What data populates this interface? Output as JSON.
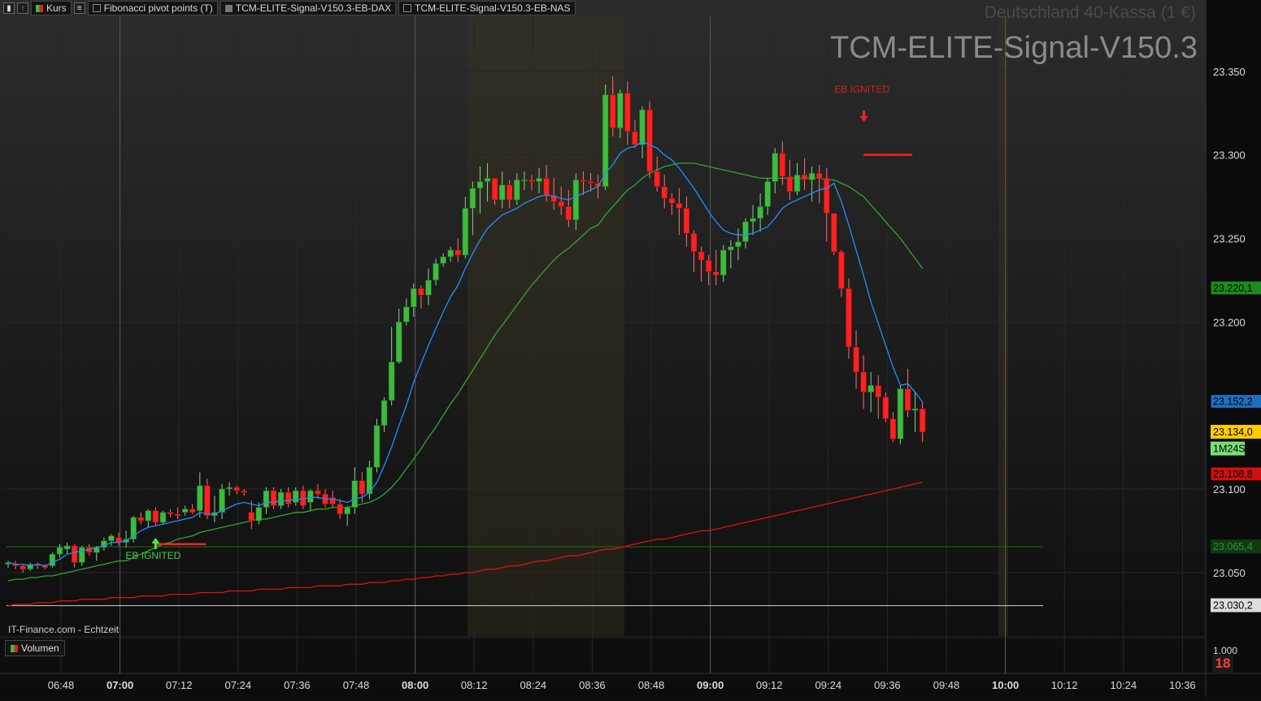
{
  "toolbar": {
    "kurs_label": "Kurs",
    "tabs": [
      {
        "label": "Fibonacci pivot points (T)",
        "color": "#2a2a2a"
      },
      {
        "label": "TCM-ELITE-Signal-V150.3-EB-DAX",
        "color": "#555555"
      },
      {
        "label": "TCM-ELITE-Signal-V150.3-EB-NAS",
        "color": "#1a1a1a"
      }
    ]
  },
  "header": {
    "instrument": "Deutschland 40-Kassa (1 €)",
    "indicator": "TCM-ELITE-Signal-V150.3"
  },
  "footer": {
    "credit": "IT-Finance.com - Echtzeit",
    "volume_label": "Volumen",
    "badge": "18"
  },
  "chart_data": {
    "type": "candlestick",
    "timeframe": "3 min",
    "x_ticks": [
      "06:48",
      "07:00",
      "07:12",
      "07:24",
      "07:36",
      "07:48",
      "08:00",
      "08:12",
      "08:24",
      "08:36",
      "08:48",
      "09:00",
      "09:12",
      "09:24",
      "09:36",
      "09:48",
      "10:00",
      "10:12",
      "10:24",
      "10:36"
    ],
    "y_ticks": [
      "23.350",
      "23.300",
      "23.250",
      "23.200",
      "23.100",
      "23.050"
    ],
    "ylim": [
      23000,
      23385
    ],
    "price_badges": [
      {
        "label": "23.220,1",
        "price": 23220.1,
        "color": "#1c8c1c"
      },
      {
        "label": "23.152,2",
        "price": 23152.2,
        "color": "#1f6fc0"
      },
      {
        "label": "23.134,0",
        "price": 23134.0,
        "color": "#ffcc00",
        "text_color": "#000000"
      },
      {
        "label": "1M24S",
        "price": 23124.0,
        "color": "#7adf7a",
        "text_color": "#000000"
      },
      {
        "label": "23.108,8",
        "price": 23108.8,
        "color": "#d01010"
      },
      {
        "label": "23.065,4",
        "price": 23065.4,
        "color": "#123a12",
        "text_color": "#2f8f2f"
      },
      {
        "label": "23.030,2",
        "price": 23030.2,
        "color": "#dddddd",
        "text_color": "#000000"
      }
    ],
    "volume_tick": "1.000",
    "signals": [
      {
        "label": "EB IGNITED",
        "type": "buy",
        "price": 23065
      },
      {
        "label": "EB IGNITED",
        "type": "sell",
        "price": 23300
      }
    ],
    "candles": [
      [
        23055,
        23057,
        23053,
        23056
      ],
      [
        23055,
        23057,
        23052,
        23054
      ],
      [
        23054,
        23055,
        23050,
        23052
      ],
      [
        23052,
        23056,
        23051,
        23055
      ],
      [
        23055,
        23056,
        23052,
        23054
      ],
      [
        23054,
        23055,
        23052,
        23053
      ],
      [
        23054,
        23062,
        23053,
        23061
      ],
      [
        23061,
        23067,
        23059,
        23065
      ],
      [
        23064,
        23068,
        23061,
        23066
      ],
      [
        23066,
        23067,
        23053,
        23056
      ],
      [
        23056,
        23066,
        23054,
        23065
      ],
      [
        23065,
        23067,
        23060,
        23062
      ],
      [
        23062,
        23066,
        23057,
        23065
      ],
      [
        23065,
        23071,
        23063,
        23069
      ],
      [
        23069,
        23073,
        23066,
        23072
      ],
      [
        23071,
        23074,
        23066,
        23068
      ],
      [
        23068,
        23075,
        23065,
        23070
      ],
      [
        23070,
        23084,
        23068,
        23083
      ],
      [
        23083,
        23086,
        23079,
        23081
      ],
      [
        23081,
        23088,
        23077,
        23087
      ],
      [
        23087,
        23089,
        23078,
        23080
      ],
      [
        23080,
        23087,
        23079,
        23086
      ],
      [
        23086,
        23088,
        23083,
        23085
      ],
      [
        23085,
        23089,
        23082,
        23084
      ],
      [
        23086,
        23090,
        23084,
        23088
      ],
      [
        23088,
        23091,
        23085,
        23086
      ],
      [
        23087,
        23110,
        23083,
        23102
      ],
      [
        23102,
        23106,
        23082,
        23084
      ],
      [
        23084,
        23096,
        23080,
        23086
      ],
      [
        23086,
        23103,
        23082,
        23100
      ],
      [
        23100,
        23104,
        23096,
        23101
      ],
      [
        23101,
        23102,
        23097,
        23099
      ],
      [
        23099,
        23100,
        23096,
        23098
      ],
      [
        23086,
        23093,
        23076,
        23081
      ],
      [
        23081,
        23092,
        23079,
        23089
      ],
      [
        23089,
        23101,
        23085,
        23099
      ],
      [
        23099,
        23101,
        23088,
        23090
      ],
      [
        23090,
        23100,
        23088,
        23098
      ],
      [
        23098,
        23101,
        23089,
        23091
      ],
      [
        23092,
        23101,
        23090,
        23099
      ],
      [
        23099,
        23102,
        23088,
        23090
      ],
      [
        23092,
        23100,
        23087,
        23099
      ],
      [
        23099,
        23103,
        23094,
        23097
      ],
      [
        23097,
        23100,
        23089,
        23091
      ],
      [
        23095,
        23099,
        23089,
        23091
      ],
      [
        23091,
        23094,
        23082,
        23085
      ],
      [
        23085,
        23090,
        23078,
        23089
      ],
      [
        23089,
        23113,
        23085,
        23105
      ],
      [
        23105,
        23110,
        23092,
        23097
      ],
      [
        23097,
        23117,
        23094,
        23113
      ],
      [
        23113,
        23142,
        23110,
        23138
      ],
      [
        23138,
        23155,
        23134,
        23153
      ],
      [
        23153,
        23197,
        23150,
        23176
      ],
      [
        23176,
        23208,
        23175,
        23200
      ],
      [
        23200,
        23214,
        23198,
        23209
      ],
      [
        23209,
        23223,
        23203,
        23220
      ],
      [
        23220,
        23222,
        23208,
        23216
      ],
      [
        23216,
        23232,
        23210,
        23225
      ],
      [
        23225,
        23238,
        23222,
        23235
      ],
      [
        23235,
        23241,
        23233,
        23239
      ],
      [
        23239,
        23245,
        23236,
        23243
      ],
      [
        23243,
        23250,
        23236,
        23240
      ],
      [
        23240,
        23275,
        23238,
        23268
      ],
      [
        23268,
        23284,
        23252,
        23280
      ],
      [
        23280,
        23293,
        23265,
        23284
      ],
      [
        23284,
        23295,
        23272,
        23286
      ],
      [
        23286,
        23283,
        23270,
        23273
      ],
      [
        23273,
        23290,
        23268,
        23282
      ],
      [
        23282,
        23285,
        23268,
        23273
      ],
      [
        23273,
        23289,
        23270,
        23285
      ],
      [
        23285,
        23290,
        23279,
        23285
      ],
      [
        23285,
        23288,
        23279,
        23284
      ],
      [
        23284,
        23292,
        23277,
        23286
      ],
      [
        23286,
        23294,
        23272,
        23276
      ],
      [
        23276,
        23286,
        23267,
        23272
      ],
      [
        23272,
        23281,
        23264,
        23269
      ],
      [
        23269,
        23279,
        23257,
        23261
      ],
      [
        23261,
        23289,
        23255,
        23285
      ],
      [
        23285,
        23290,
        23276,
        23284
      ],
      [
        23284,
        23289,
        23278,
        23283
      ],
      [
        23283,
        23288,
        23274,
        23281
      ],
      [
        23281,
        23342,
        23279,
        23336
      ],
      [
        23336,
        23347,
        23311,
        23316
      ],
      [
        23316,
        23339,
        23310,
        23337
      ],
      [
        23337,
        23344,
        23306,
        23314
      ],
      [
        23314,
        23321,
        23304,
        23306
      ],
      [
        23306,
        23329,
        23298,
        23327
      ],
      [
        23327,
        23332,
        23286,
        23290
      ],
      [
        23290,
        23299,
        23278,
        23281
      ],
      [
        23281,
        23288,
        23268,
        23274
      ],
      [
        23274,
        23277,
        23264,
        23271
      ],
      [
        23271,
        23280,
        23252,
        23268
      ],
      [
        23268,
        23275,
        23245,
        23253
      ],
      [
        23253,
        23255,
        23230,
        23242
      ],
      [
        23242,
        23245,
        23224,
        23237
      ],
      [
        23237,
        23240,
        23222,
        23230
      ],
      [
        23230,
        23243,
        23222,
        23228
      ],
      [
        23228,
        23246,
        23224,
        23243
      ],
      [
        23243,
        23249,
        23232,
        23245
      ],
      [
        23245,
        23256,
        23237,
        23248
      ],
      [
        23248,
        23262,
        23244,
        23260
      ],
      [
        23260,
        23270,
        23252,
        23262
      ],
      [
        23262,
        23277,
        23254,
        23269
      ],
      [
        23269,
        23286,
        23264,
        23284
      ],
      [
        23284,
        23304,
        23277,
        23301
      ],
      [
        23301,
        23308,
        23282,
        23287
      ],
      [
        23287,
        23297,
        23273,
        23278
      ],
      [
        23278,
        23295,
        23276,
        23288
      ],
      [
        23288,
        23298,
        23279,
        23285
      ],
      [
        23285,
        23293,
        23272,
        23289
      ],
      [
        23289,
        23294,
        23271,
        23286
      ],
      [
        23286,
        23292,
        23248,
        23265
      ],
      [
        23265,
        23265,
        23240,
        23242
      ],
      [
        23242,
        23243,
        23215,
        23220
      ],
      [
        23220,
        23226,
        23178,
        23185
      ],
      [
        23185,
        23195,
        23160,
        23170
      ],
      [
        23170,
        23180,
        23148,
        23158
      ],
      [
        23158,
        23170,
        23146,
        23162
      ],
      [
        23162,
        23168,
        23142,
        23155
      ],
      [
        23155,
        23158,
        23140,
        23142
      ],
      [
        23142,
        23146,
        23128,
        23130
      ],
      [
        23130,
        23162,
        23127,
        23160
      ],
      [
        23160,
        23172,
        23143,
        23147
      ],
      [
        23147,
        23158,
        23134,
        23148
      ],
      [
        23148,
        23152,
        23128,
        23134
      ]
    ],
    "ema_fast": [
      23056,
      23055,
      23055,
      23054,
      23055,
      23054,
      23056,
      23058,
      23061,
      23062,
      23063,
      23064,
      23065,
      23066,
      23068,
      23068,
      23069,
      23072,
      23075,
      23077,
      23078,
      23079,
      23080,
      23081,
      23082,
      23083,
      23086,
      23085,
      23085,
      23087,
      23089,
      23091,
      23092,
      23091,
      23090,
      23092,
      23092,
      23093,
      23093,
      23094,
      23094,
      23095,
      23095,
      23094,
      23094,
      23093,
      23092,
      23094,
      23095,
      23098,
      23104,
      23114,
      23125,
      23138,
      23150,
      23164,
      23175,
      23186,
      23196,
      23206,
      23215,
      23222,
      23232,
      23241,
      23249,
      23256,
      23260,
      23264,
      23266,
      23268,
      23271,
      23273,
      23275,
      23276,
      23275,
      23274,
      23273,
      23275,
      23277,
      23279,
      23281,
      23289,
      23294,
      23301,
      23304,
      23305,
      23308,
      23306,
      23304,
      23300,
      23297,
      23292,
      23286,
      23280,
      23273,
      23266,
      23260,
      23255,
      23253,
      23252,
      23252,
      23253,
      23255,
      23257,
      23262,
      23268,
      23271,
      23273,
      23275,
      23277,
      23279,
      23280,
      23283,
      23272,
      23258,
      23243,
      23228,
      23212,
      23199,
      23186,
      23173,
      23162,
      23163,
      23158,
      23152
    ],
    "ema_slow": [
      23045,
      23046,
      23046,
      23047,
      23047,
      23048,
      23048,
      23049,
      23050,
      23051,
      23052,
      23053,
      23054,
      23055,
      23056,
      23057,
      23057,
      23059,
      23061,
      23063,
      23065,
      23067,
      23068,
      23070,
      23071,
      23072,
      23074,
      23075,
      23076,
      23077,
      23078,
      23079,
      23080,
      23081,
      23082,
      23082,
      23083,
      23084,
      23085,
      23086,
      23086,
      23087,
      23088,
      23088,
      23089,
      23089,
      23089,
      23090,
      23091,
      23092,
      23094,
      23097,
      23101,
      23106,
      23112,
      23118,
      23124,
      23131,
      23137,
      23144,
      23151,
      23157,
      23164,
      23171,
      23178,
      23185,
      23192,
      23198,
      23204,
      23210,
      23216,
      23222,
      23227,
      23232,
      23237,
      23241,
      23244,
      23248,
      23252,
      23256,
      23258,
      23264,
      23269,
      23274,
      23279,
      23282,
      23286,
      23289,
      23291,
      23293,
      23294,
      23295,
      23295,
      23295,
      23294,
      23293,
      23292,
      23291,
      23290,
      23289,
      23288,
      23287,
      23286,
      23286,
      23286,
      23286,
      23286,
      23286,
      23286,
      23286,
      23286,
      23285,
      23285,
      23283,
      23281,
      23278,
      23275,
      23270,
      23265,
      23260,
      23255,
      23250,
      23244,
      23238,
      23232
    ],
    "ma_long": [
      23030,
      23031,
      23031,
      23031,
      23032,
      23032,
      23032,
      23033,
      23033,
      23033,
      23034,
      23034,
      23034,
      23034,
      23035,
      23035,
      23035,
      23035,
      23036,
      23036,
      23036,
      23036,
      23037,
      23037,
      23037,
      23037,
      23038,
      23038,
      23038,
      23038,
      23039,
      23039,
      23039,
      23039,
      23040,
      23040,
      23040,
      23040,
      23041,
      23041,
      23041,
      23041,
      23042,
      23042,
      23042,
      23042,
      23043,
      23043,
      23043,
      23044,
      23044,
      23044,
      23045,
      23045,
      23046,
      23046,
      23047,
      23047,
      23048,
      23048,
      23049,
      23049,
      23050,
      23050,
      23051,
      23052,
      23052,
      23053,
      23054,
      23054,
      23055,
      23056,
      23057,
      23057,
      23058,
      23059,
      23060,
      23060,
      23061,
      23062,
      23063,
      23064,
      23064,
      23065,
      23066,
      23067,
      23068,
      23069,
      23070,
      23070,
      23071,
      23072,
      23073,
      23074,
      23075,
      23075,
      23076,
      23077,
      23078,
      23079,
      23080,
      23081,
      23082,
      23083,
      23084,
      23085,
      23086,
      23087,
      23088,
      23089,
      23090,
      23091,
      23092,
      23093,
      23094,
      23095,
      23096,
      23097,
      23098,
      23099,
      23100,
      23101,
      23102,
      23103,
      23104
    ],
    "volumes": [
      0,
      0,
      0,
      0,
      0,
      0,
      0,
      0,
      0,
      0,
      0,
      0,
      0,
      0,
      0,
      0,
      0,
      0,
      0,
      0,
      0,
      0,
      0,
      0,
      0,
      0,
      0,
      0,
      0,
      0,
      0,
      0,
      0,
      0,
      0,
      0,
      0,
      0,
      0,
      0,
      0,
      0,
      0,
      0,
      0,
      0,
      0,
      0,
      0,
      0,
      0,
      0,
      0,
      0,
      0,
      0,
      0,
      0,
      0,
      0,
      0,
      0,
      0,
      0,
      0,
      0,
      0,
      0,
      0,
      0,
      0,
      0,
      0,
      0,
      0,
      0,
      0,
      0,
      0,
      0,
      0,
      0,
      0,
      0,
      0,
      0,
      0,
      0,
      0,
      0,
      0,
      0,
      0,
      0,
      0,
      0,
      0,
      0,
      0,
      0,
      0,
      0,
      0,
      0,
      0,
      0,
      0,
      0,
      0,
      0,
      0,
      0,
      0,
      0,
      0,
      0,
      0,
      0,
      0,
      0,
      0,
      0,
      0,
      0,
      0
    ],
    "volume_scale_max": 1000
  },
  "colors": {
    "up": "#3dbb3d",
    "down": "#ff2020",
    "ema_fast": "#1e90ff",
    "ema_slow": "#2ea82e",
    "ma_long": "#e01010",
    "grid": "#272727",
    "axis_text": "#dcdcdc"
  }
}
